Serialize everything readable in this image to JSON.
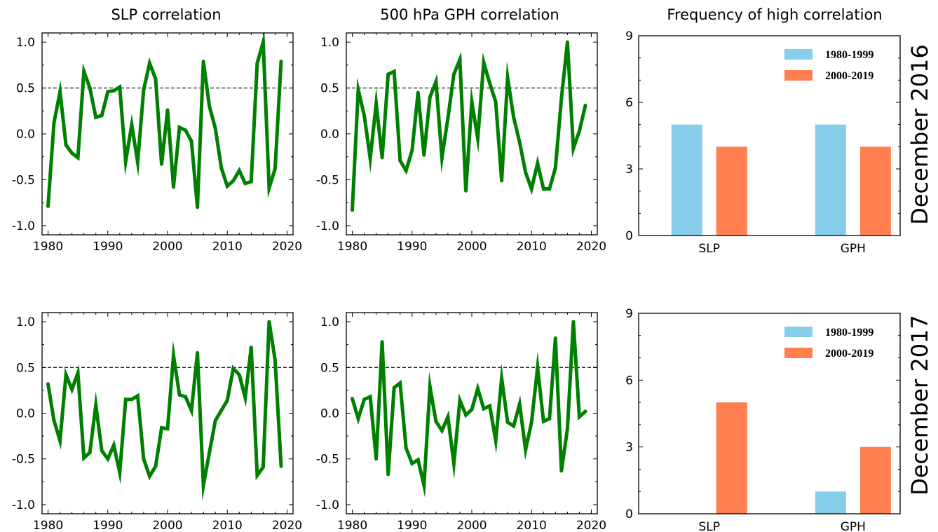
{
  "figure": {
    "column_titles": [
      "SLP correlation",
      "500 hPa GPH correlation",
      "Frequency of high correlation"
    ],
    "row_labels": [
      "December 2016",
      "December 2017"
    ]
  },
  "colors": {
    "line": "#008000",
    "series_1980_1999": "#87ceeb",
    "series_2000_2019": "#ff7f50",
    "reference_line": "#000000"
  },
  "chart_data": [
    {
      "id": "slp-2016",
      "type": "line",
      "title": "SLP correlation",
      "xlabel": "",
      "ylabel": "",
      "xlim": [
        1979,
        2021
      ],
      "ylim": [
        -1.1,
        1.1
      ],
      "xticks": [
        1980,
        1990,
        2000,
        2010,
        2020
      ],
      "yticks": [
        -1.0,
        -0.5,
        0.0,
        0.5,
        1.0
      ],
      "ytick_labels": [
        "-1.0",
        "-0.5",
        "0.0",
        "0.5",
        "1.0"
      ],
      "reference_line": 0.5,
      "grid": false,
      "x": [
        1980,
        1981,
        1982,
        1983,
        1984,
        1985,
        1986,
        1987,
        1988,
        1989,
        1990,
        1991,
        1992,
        1993,
        1994,
        1995,
        1996,
        1997,
        1998,
        1999,
        2000,
        2001,
        2002,
        2003,
        2004,
        2005,
        2006,
        2007,
        2008,
        2009,
        2010,
        2011,
        2012,
        2013,
        2014,
        2015,
        2016,
        2017,
        2018,
        2019
      ],
      "values": [
        -0.79,
        0.12,
        0.46,
        -0.12,
        -0.21,
        -0.26,
        0.68,
        0.5,
        0.18,
        0.2,
        0.46,
        0.47,
        0.51,
        -0.3,
        0.1,
        -0.31,
        0.48,
        0.77,
        0.6,
        -0.33,
        0.26,
        -0.58,
        0.07,
        0.04,
        -0.08,
        -0.8,
        0.79,
        0.3,
        0.06,
        -0.37,
        -0.57,
        -0.51,
        -0.4,
        -0.54,
        -0.52,
        0.77,
        1.0,
        -0.59,
        -0.38,
        0.79
      ]
    },
    {
      "id": "gph-2016",
      "type": "line",
      "title": "500 hPa GPH correlation",
      "xlabel": "",
      "ylabel": "",
      "xlim": [
        1979,
        2021
      ],
      "ylim": [
        -1.1,
        1.1
      ],
      "xticks": [
        1980,
        1990,
        2000,
        2010,
        2020
      ],
      "yticks": [
        -1.0,
        -0.5,
        0.0,
        0.5,
        1.0
      ],
      "ytick_labels": [
        "-1.0",
        "-0.5",
        "0.0",
        "0.5",
        "1.0"
      ],
      "reference_line": 0.5,
      "grid": false,
      "x": [
        1980,
        1981,
        1982,
        1983,
        1984,
        1985,
        1986,
        1987,
        1988,
        1989,
        1990,
        1991,
        1992,
        1993,
        1994,
        1995,
        1996,
        1997,
        1998,
        1999,
        2000,
        2001,
        2002,
        2003,
        2004,
        2005,
        2006,
        2007,
        2008,
        2009,
        2010,
        2011,
        2012,
        2013,
        2014,
        2015,
        2016,
        2017,
        2018,
        2019
      ],
      "values": [
        -0.83,
        0.48,
        0.2,
        -0.27,
        0.33,
        -0.26,
        0.65,
        0.68,
        -0.29,
        -0.4,
        -0.18,
        0.45,
        -0.23,
        0.4,
        0.57,
        -0.26,
        0.17,
        0.65,
        0.81,
        -0.62,
        0.35,
        -0.05,
        0.78,
        0.55,
        0.35,
        -0.51,
        0.61,
        0.18,
        -0.09,
        -0.42,
        -0.6,
        -0.32,
        -0.6,
        -0.6,
        -0.37,
        0.39,
        1.0,
        -0.16,
        0.03,
        0.31
      ]
    },
    {
      "id": "freq-2016",
      "type": "bar",
      "title": "Frequency of high correlation",
      "xlabel": "",
      "ylabel": "",
      "categories": [
        "SLP",
        "GPH"
      ],
      "ylim": [
        0,
        9
      ],
      "yticks": [
        0,
        3,
        6,
        9
      ],
      "legend_position": "top-right",
      "grid": false,
      "series": [
        {
          "name": "1980-1999",
          "values": [
            5,
            5
          ]
        },
        {
          "name": "2000-2019",
          "values": [
            4,
            4
          ]
        }
      ]
    },
    {
      "id": "slp-2017",
      "type": "line",
      "title": "",
      "xlabel": "",
      "ylabel": "",
      "xlim": [
        1979,
        2021
      ],
      "ylim": [
        -1.1,
        1.1
      ],
      "xticks": [
        1980,
        1990,
        2000,
        2010,
        2020
      ],
      "yticks": [
        -1.0,
        -0.5,
        0.0,
        0.5,
        1.0
      ],
      "ytick_labels": [
        "-1.0",
        "-0.5",
        "0.0",
        "0.5",
        "1.0"
      ],
      "reference_line": 0.5,
      "grid": false,
      "x": [
        1980,
        1981,
        1982,
        1983,
        1984,
        1985,
        1986,
        1987,
        1988,
        1989,
        1990,
        1991,
        1992,
        1993,
        1994,
        1995,
        1996,
        1997,
        1998,
        1999,
        2000,
        2001,
        2002,
        2003,
        2004,
        2005,
        2006,
        2007,
        2008,
        2009,
        2010,
        2011,
        2012,
        2013,
        2014,
        2015,
        2016,
        2017,
        2018,
        2019
      ],
      "values": [
        0.32,
        -0.08,
        -0.3,
        0.42,
        0.26,
        0.44,
        -0.49,
        -0.43,
        0.09,
        -0.41,
        -0.5,
        -0.35,
        -0.65,
        0.15,
        0.15,
        0.19,
        -0.5,
        -0.69,
        -0.58,
        -0.16,
        -0.17,
        0.63,
        0.2,
        0.18,
        0.03,
        0.66,
        -0.79,
        -0.43,
        -0.08,
        0.03,
        0.14,
        0.49,
        0.42,
        0.17,
        0.72,
        -0.68,
        -0.59,
        1.0,
        0.58,
        -0.58
      ]
    },
    {
      "id": "gph-2017",
      "type": "line",
      "title": "",
      "xlabel": "",
      "ylabel": "",
      "xlim": [
        1979,
        2021
      ],
      "ylim": [
        -1.1,
        1.1
      ],
      "xticks": [
        1980,
        1990,
        2000,
        2010,
        2020
      ],
      "yticks": [
        -1.0,
        -0.5,
        0.0,
        0.5,
        1.0
      ],
      "ytick_labels": [
        "-1.0",
        "-0.5",
        "0.0",
        "0.5",
        "1.0"
      ],
      "reference_line": 0.5,
      "grid": false,
      "x": [
        1980,
        1981,
        1982,
        1983,
        1984,
        1985,
        1986,
        1987,
        1988,
        1989,
        1990,
        1991,
        1992,
        1993,
        1994,
        1995,
        1996,
        1997,
        1998,
        1999,
        2000,
        2001,
        2002,
        2003,
        2004,
        2005,
        2006,
        2007,
        2008,
        2009,
        2010,
        2011,
        2012,
        2013,
        2014,
        2015,
        2016,
        2017,
        2018,
        2019
      ],
      "values": [
        0.16,
        -0.06,
        0.15,
        0.18,
        -0.5,
        0.78,
        -0.67,
        0.28,
        0.33,
        -0.38,
        -0.55,
        -0.51,
        -0.79,
        0.29,
        -0.09,
        -0.19,
        -0.04,
        -0.55,
        0.14,
        -0.02,
        0.04,
        0.27,
        0.05,
        0.08,
        -0.3,
        0.38,
        -0.1,
        -0.14,
        0.1,
        -0.4,
        -0.1,
        0.5,
        -0.09,
        -0.06,
        0.82,
        -0.63,
        -0.17,
        1.0,
        -0.04,
        0.02
      ]
    },
    {
      "id": "freq-2017",
      "type": "bar",
      "title": "",
      "xlabel": "",
      "ylabel": "",
      "categories": [
        "SLP",
        "GPH"
      ],
      "ylim": [
        0,
        9
      ],
      "yticks": [
        0,
        3,
        6,
        9
      ],
      "legend_position": "top-right",
      "grid": false,
      "series": [
        {
          "name": "1980-1999",
          "values": [
            0,
            1
          ]
        },
        {
          "name": "2000-2019",
          "values": [
            5,
            3
          ]
        }
      ]
    }
  ]
}
